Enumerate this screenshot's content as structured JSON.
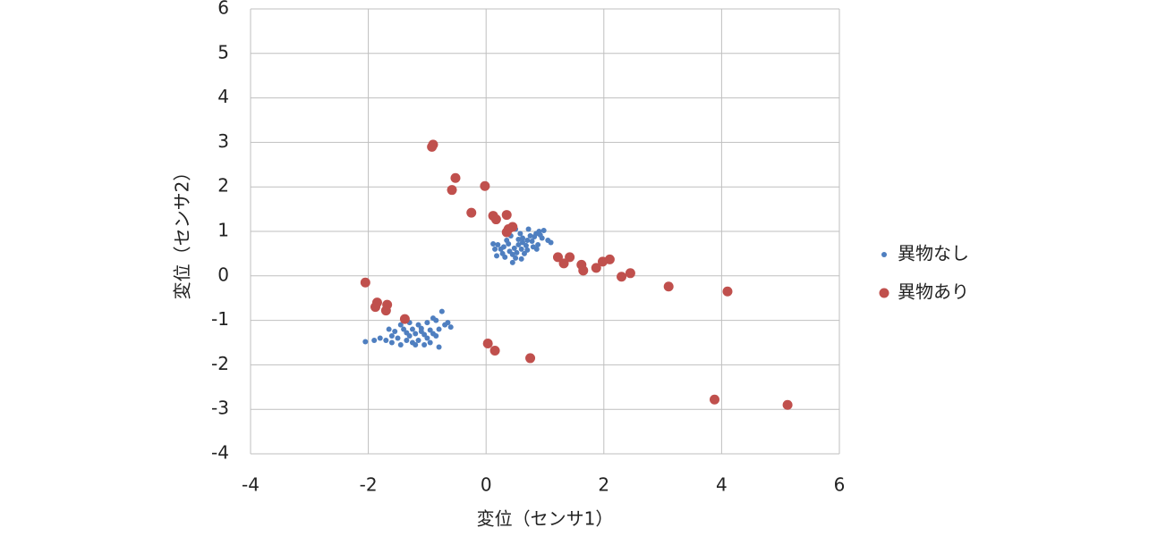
{
  "chart_data": {
    "type": "scatter",
    "xlabel": "変位（センサ1）",
    "ylabel": "変位（センサ2）",
    "xlim": [
      -4,
      6
    ],
    "ylim": [
      -4,
      6
    ],
    "xticks": [
      -4,
      -2,
      0,
      2,
      4,
      6
    ],
    "yticks": [
      -4,
      -3,
      -2,
      -1,
      0,
      1,
      2,
      3,
      4,
      5,
      6
    ],
    "grid": true,
    "legend": "right",
    "series": [
      {
        "name": "異物なし",
        "color": "#4f7fc0",
        "x": [
          0.55,
          0.62,
          0.48,
          0.7,
          0.75,
          0.4,
          0.3,
          0.2,
          0.12,
          0.85,
          0.9,
          0.95,
          1.05,
          0.8,
          0.65,
          0.5,
          0.45,
          0.6,
          0.35,
          0.28,
          0.18,
          0.72,
          0.58,
          0.42,
          0.68,
          0.78,
          0.88,
          0.52,
          0.38,
          0.25,
          0.62,
          0.92,
          1.1,
          0.82,
          0.55,
          0.45,
          0.7,
          0.32,
          0.6,
          0.98,
          0.15,
          0.5,
          0.86,
          -1.2,
          -1.1,
          -1.3,
          -1.4,
          -1.0,
          -0.9,
          -0.8,
          -0.7,
          -0.6,
          -0.65,
          -0.75,
          -0.85,
          -0.95,
          -1.05,
          -1.15,
          -1.25,
          -1.35,
          -1.5,
          -1.6,
          -1.7,
          -1.8,
          -1.9,
          -2.05,
          -1.55,
          -1.45,
          -1.3,
          -1.15,
          -1.0,
          -0.9,
          -1.25,
          -1.35,
          -1.05,
          -0.85,
          -0.8,
          -1.6,
          -1.45,
          -1.2,
          -1.1,
          -0.95,
          -1.65
        ],
        "values": [
          0.7,
          0.75,
          0.62,
          0.8,
          0.9,
          0.55,
          0.65,
          0.7,
          0.72,
          0.95,
          1.0,
          0.85,
          0.8,
          0.65,
          0.5,
          0.4,
          0.3,
          0.6,
          0.8,
          0.5,
          0.45,
          1.05,
          0.95,
          0.9,
          0.68,
          0.78,
          0.7,
          0.52,
          0.72,
          0.6,
          0.85,
          0.92,
          0.75,
          0.88,
          0.82,
          0.48,
          0.58,
          0.42,
          0.38,
          1.02,
          0.6,
          1.05,
          0.6,
          -1.3,
          -1.25,
          -1.35,
          -1.2,
          -1.4,
          -1.3,
          -1.2,
          -1.1,
          -1.15,
          -1.05,
          -0.8,
          -1.0,
          -1.5,
          -1.55,
          -1.45,
          -1.5,
          -1.45,
          -1.4,
          -1.5,
          -1.45,
          -1.4,
          -1.45,
          -1.48,
          -1.25,
          -1.1,
          -1.05,
          -1.1,
          -1.05,
          -0.95,
          -1.2,
          -1.28,
          -1.32,
          -1.35,
          -1.6,
          -1.35,
          -1.55,
          -1.55,
          -1.18,
          -1.22,
          -1.2
        ]
      },
      {
        "name": "異物あり",
        "color": "#c0504d",
        "x": [
          -0.9,
          -0.92,
          -0.52,
          -0.58,
          -0.02,
          -0.25,
          0.12,
          0.17,
          0.35,
          0.45,
          0.35,
          0.38,
          1.22,
          1.32,
          1.42,
          1.62,
          1.65,
          1.87,
          1.98,
          2.1,
          2.3,
          2.45,
          3.1,
          4.1,
          -2.05,
          -1.85,
          -1.88,
          -1.68,
          -1.7,
          -1.38,
          0.03,
          0.15,
          0.75,
          3.88,
          5.12
        ],
        "values": [
          2.95,
          2.9,
          2.2,
          1.93,
          2.02,
          1.42,
          1.35,
          1.27,
          1.37,
          1.1,
          0.98,
          1.05,
          0.42,
          0.28,
          0.42,
          0.25,
          0.12,
          0.18,
          0.32,
          0.37,
          -0.02,
          0.06,
          -0.24,
          -0.35,
          -0.15,
          -0.6,
          -0.7,
          -0.65,
          -0.78,
          -0.97,
          -1.52,
          -1.68,
          -1.85,
          -2.78,
          -2.9
        ]
      }
    ]
  }
}
